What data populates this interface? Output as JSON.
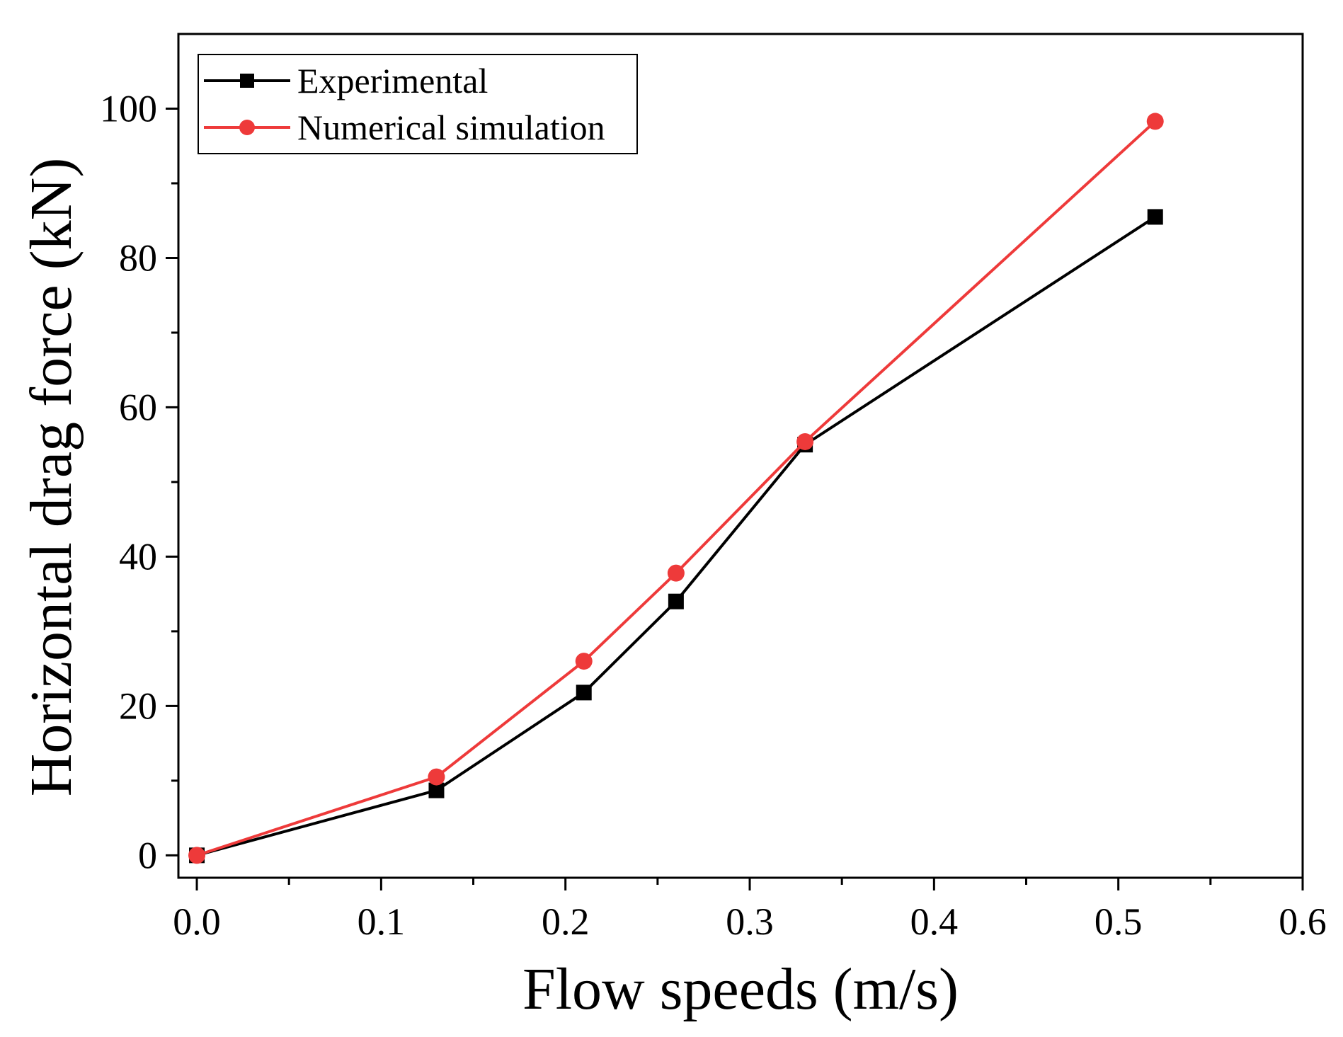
{
  "chart_data": {
    "type": "line",
    "xlabel": "Flow speeds (m/s)",
    "ylabel": "Horizontal drag force (kN)",
    "xlim": [
      -0.01,
      0.6
    ],
    "ylim": [
      -3,
      110
    ],
    "x_ticks": [
      0.0,
      0.1,
      0.2,
      0.3,
      0.4,
      0.5,
      0.6
    ],
    "x_tick_labels": [
      "0.0",
      "0.1",
      "0.2",
      "0.3",
      "0.4",
      "0.5",
      "0.6"
    ],
    "y_ticks": [
      0,
      20,
      40,
      60,
      80,
      100
    ],
    "y_tick_labels": [
      "0",
      "20",
      "40",
      "60",
      "80",
      "100"
    ],
    "x_minor_step": 0.05,
    "y_minor_step": 10,
    "grid": false,
    "legend_position": "top-left",
    "series": [
      {
        "name": "Experimental",
        "color": "#000000",
        "marker": "square",
        "x": [
          0.0,
          0.13,
          0.21,
          0.26,
          0.33,
          0.52
        ],
        "y": [
          0,
          8.7,
          21.8,
          34.0,
          55.0,
          85.5
        ]
      },
      {
        "name": "Numerical simulation",
        "color": "#ee3a3a",
        "marker": "circle",
        "x": [
          0.0,
          0.13,
          0.21,
          0.26,
          0.33,
          0.52
        ],
        "y": [
          0,
          10.5,
          26.0,
          37.8,
          55.4,
          98.3
        ]
      }
    ]
  }
}
